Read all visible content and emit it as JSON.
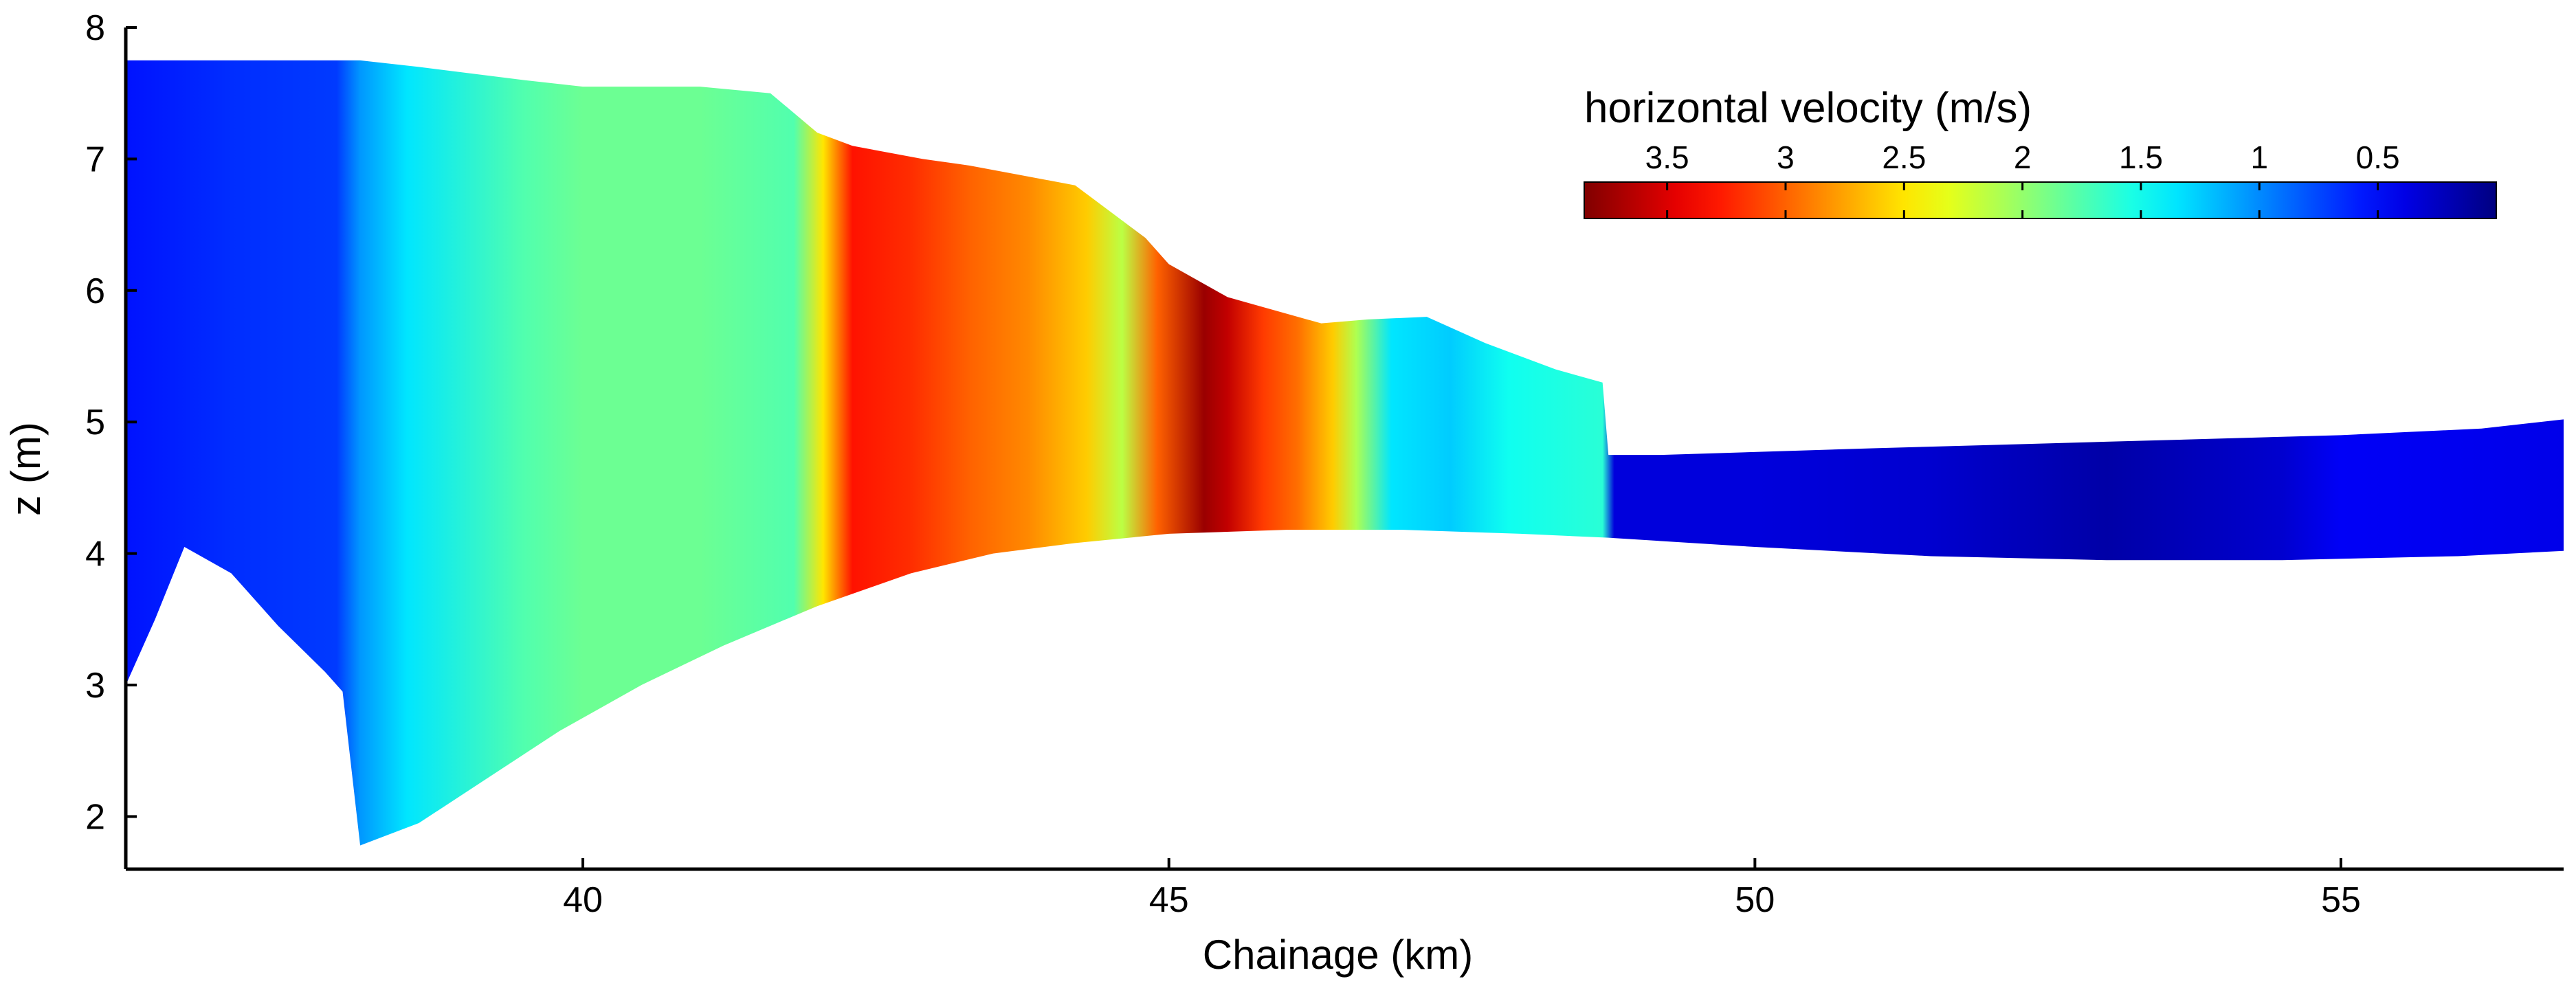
{
  "chart_data": {
    "type": "heatmap",
    "title": "",
    "xlabel": "Chainage (km)",
    "ylabel": "z (m)",
    "xlim": [
      36.1,
      56.9
    ],
    "ylim": [
      1.6,
      8.0
    ],
    "xticks": [
      40,
      45,
      50,
      55
    ],
    "yticks": [
      2,
      3,
      4,
      5,
      6,
      7,
      8
    ],
    "colorbar": {
      "title": "horizontal velocity (m/s)",
      "range": [
        0,
        3.85
      ],
      "direction": "decreasing left to right",
      "ticks": [
        3.5,
        3,
        2.5,
        2,
        1.5,
        1,
        0.5
      ],
      "tick_labels": [
        "3.5",
        "3",
        "2.5",
        "2",
        "1.5",
        "1",
        "0.5"
      ],
      "placement": "top-right"
    },
    "surface_profile": {
      "x": [
        36.1,
        38.1,
        38.6,
        39.5,
        40.0,
        41.0,
        41.6,
        42.0,
        42.3,
        42.9,
        43.3,
        44.2,
        44.5,
        44.8,
        45.0,
        45.5,
        45.7,
        46.3,
        46.7,
        47.2,
        47.7,
        48.3,
        48.7,
        48.75,
        49.2,
        51.0,
        53.0,
        55.0,
        56.2,
        56.9
      ],
      "z": [
        7.75,
        7.75,
        7.7,
        7.6,
        7.55,
        7.55,
        7.5,
        7.2,
        7.1,
        7.0,
        6.95,
        6.8,
        6.6,
        6.4,
        6.2,
        5.95,
        5.9,
        5.75,
        5.78,
        5.8,
        5.6,
        5.4,
        5.3,
        4.75,
        4.75,
        4.8,
        4.85,
        4.9,
        4.95,
        5.02
      ]
    },
    "bed_profile": {
      "x": [
        36.1,
        36.2,
        36.35,
        36.6,
        37.0,
        37.4,
        37.8,
        37.95,
        38.1,
        38.6,
        39.2,
        39.8,
        40.5,
        41.2,
        42.0,
        42.8,
        43.5,
        44.2,
        45.0,
        46.0,
        47.0,
        48.0,
        48.75,
        50.0,
        51.5,
        53.0,
        54.5,
        56.0,
        56.9
      ],
      "z": [
        3.0,
        3.2,
        3.5,
        4.05,
        3.85,
        3.45,
        3.1,
        2.95,
        1.78,
        1.95,
        2.3,
        2.65,
        3.0,
        3.3,
        3.6,
        3.85,
        4.0,
        4.08,
        4.15,
        4.18,
        4.18,
        4.15,
        4.12,
        4.05,
        3.98,
        3.95,
        3.95,
        3.98,
        4.02
      ]
    },
    "velocity_profile": {
      "x": [
        36.1,
        37.0,
        37.9,
        38.1,
        38.5,
        39.5,
        40.0,
        41.0,
        41.8,
        42.05,
        42.3,
        42.8,
        43.3,
        43.8,
        44.3,
        44.6,
        44.9,
        45.3,
        45.5,
        45.8,
        46.1,
        46.4,
        46.6,
        46.9,
        47.4,
        47.9,
        48.7,
        48.8,
        50.0,
        51.5,
        53.0,
        54.5,
        55.0,
        56.9
      ],
      "velocity": [
        0.55,
        0.65,
        0.7,
        1.05,
        1.35,
        1.75,
        1.85,
        1.85,
        1.75,
        2.5,
        3.3,
        3.2,
        3.0,
        2.85,
        2.6,
        2.15,
        3.0,
        3.75,
        3.6,
        3.15,
        2.95,
        2.6,
        2.1,
        1.35,
        1.25,
        1.5,
        1.6,
        0.35,
        0.35,
        0.3,
        0.15,
        0.3,
        0.45,
        0.4
      ]
    }
  }
}
